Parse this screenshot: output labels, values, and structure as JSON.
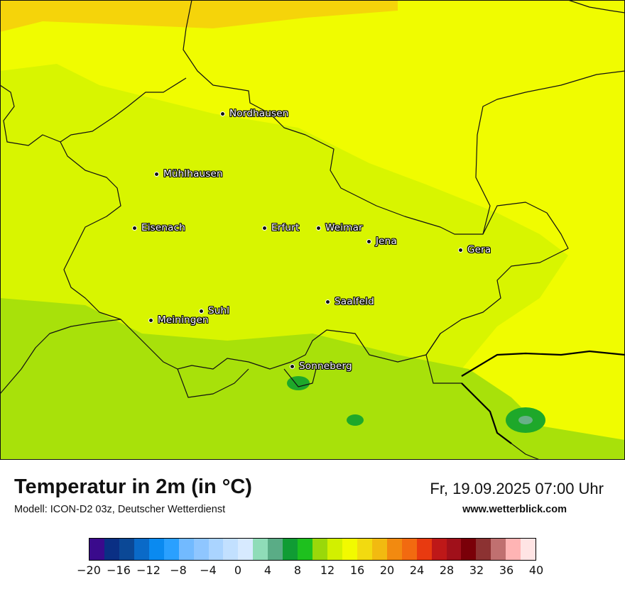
{
  "map": {
    "cities": [
      {
        "name": "Nordhausen"
      },
      {
        "name": "Mühlhausen"
      },
      {
        "name": "Eisenach"
      },
      {
        "name": "Erfurt"
      },
      {
        "name": "Weimar"
      },
      {
        "name": "Jena"
      },
      {
        "name": "Gera"
      },
      {
        "name": "Suhl"
      },
      {
        "name": "Meiningen"
      },
      {
        "name": "Saalfeld"
      },
      {
        "name": "Sonneberg"
      }
    ],
    "field_colors": {
      "orange_yellow": "#f5d40a",
      "bright_yellow": "#f0fc00",
      "yellow_green": "#d8f500",
      "light_green": "#a8e10a",
      "green": "#28c020",
      "mid_green": "#1ea82a",
      "teal": "#68b088"
    }
  },
  "footer": {
    "title": "Temperatur in 2m (in °C)",
    "subtitle": "Modell: ICON-D2 03z, Deutscher Wetterdienst",
    "datetime": "Fr, 19.09.2025 07:00 Uhr",
    "website": "www.wetterblick.com"
  },
  "colorbar": {
    "min": -20,
    "max": 40,
    "colors": [
      "#3a0a8c",
      "#0a2f84",
      "#0b4896",
      "#0a6ac8",
      "#0a8af0",
      "#2aa0ff",
      "#72baff",
      "#8fc6ff",
      "#aad4ff",
      "#c2e0ff",
      "#d7eaff",
      "#8fdcb8",
      "#5aac86",
      "#109c34",
      "#1ec01e",
      "#9ad80a",
      "#d2f000",
      "#f2fa00",
      "#f2da10",
      "#f2ba10",
      "#f28a10",
      "#f26a10",
      "#e83a10",
      "#be1818",
      "#a0101a",
      "#7a0008",
      "#8c3232",
      "#c07070",
      "#ffb4b4",
      "#ffe4e4"
    ],
    "ticks": [
      "−20",
      "−16",
      "−12",
      "−8",
      "−4",
      "0",
      "4",
      "8",
      "12",
      "16",
      "20",
      "24",
      "28",
      "32",
      "36",
      "40"
    ]
  }
}
